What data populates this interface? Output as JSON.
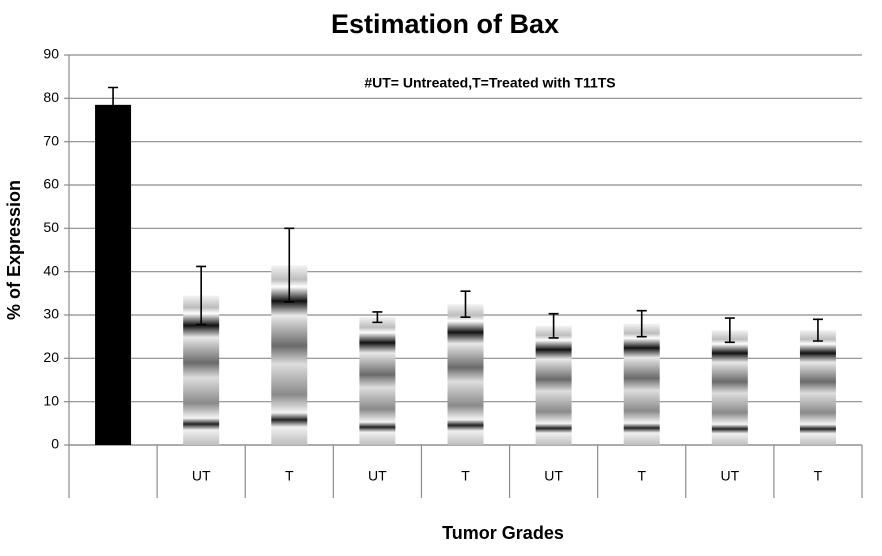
{
  "chart_data": {
    "type": "bar",
    "title": "Estimation of Bax",
    "annotation": "#UT= Untreated,T=Treated with T11TS",
    "x_label": "Tumor Grades",
    "y_label": "% of Expression",
    "categories": [
      null,
      "UT",
      "T",
      "UT",
      "T",
      "UT",
      "T",
      "UT",
      "T"
    ],
    "values": [
      78.5,
      34.5,
      41.5,
      29.5,
      32.5,
      27.5,
      28,
      26.5,
      26.5
    ],
    "errors": [
      4,
      6.7,
      8.5,
      1.2,
      3,
      2.8,
      3,
      2.8,
      2.5
    ],
    "colors": [
      "#000000",
      "#bdbdbd",
      "#bdbdbd",
      "#bdbdbd",
      "#bdbdbd",
      "#bdbdbd",
      "#bdbdbd",
      "#bdbdbd",
      "#bdbdbd"
    ],
    "fills": [
      "solid",
      "banded",
      "banded",
      "banded",
      "banded",
      "banded",
      "banded",
      "banded",
      "banded"
    ],
    "ylim": [
      0,
      90
    ],
    "yticks": [
      0,
      10,
      20,
      30,
      40,
      50,
      60,
      70,
      80,
      90
    ],
    "grid": true
  }
}
